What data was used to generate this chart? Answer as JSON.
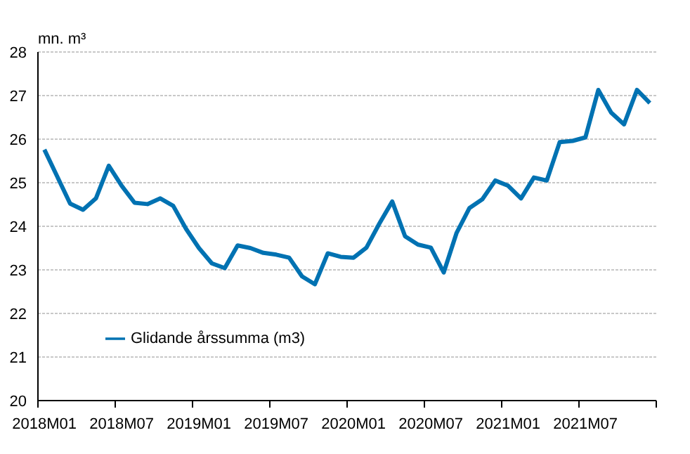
{
  "chart_data": {
    "type": "line",
    "ylabel": "mn. m³",
    "categories": [
      "2018M01",
      null,
      null,
      null,
      null,
      null,
      "2018M07",
      null,
      null,
      null,
      null,
      null,
      "2019M01",
      null,
      null,
      null,
      null,
      null,
      "2019M07",
      null,
      null,
      null,
      null,
      null,
      "2020M01",
      null,
      null,
      null,
      null,
      null,
      "2020M07",
      null,
      null,
      null,
      null,
      null,
      "2021M01",
      null,
      null,
      null,
      null,
      null,
      "2021M07",
      null,
      null,
      null,
      null,
      null
    ],
    "series": [
      {
        "name": "Glidande årssumma (m3)",
        "color": "#0072b2",
        "values": [
          25.76,
          25.14,
          24.52,
          24.38,
          24.64,
          25.39,
          24.93,
          24.54,
          24.51,
          24.64,
          24.47,
          23.94,
          23.5,
          23.15,
          23.04,
          23.56,
          23.5,
          23.39,
          23.35,
          23.28,
          22.85,
          22.67,
          23.38,
          23.3,
          23.28,
          23.51,
          24.06,
          24.57,
          23.77,
          23.58,
          23.51,
          22.94,
          23.85,
          24.42,
          24.62,
          25.05,
          24.93,
          24.64,
          25.12,
          25.05,
          25.93,
          25.96,
          26.04,
          27.13,
          26.61,
          26.34,
          27.13,
          26.83
        ]
      }
    ],
    "ylim": [
      20,
      28
    ],
    "yticks": [
      20,
      21,
      22,
      23,
      24,
      25,
      26,
      27,
      28
    ],
    "grid": "y",
    "legend": "bottom left",
    "marker": "none",
    "line_style": "solid"
  }
}
